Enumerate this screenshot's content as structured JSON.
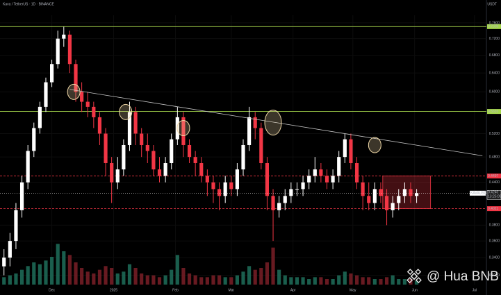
{
  "chart_data": {
    "type": "candlestick",
    "title": "Kava / TetherUS · 1D · BINANCE",
    "currency": "USDT",
    "watermark": "@ Hua BNB",
    "up_color": "#ffffff",
    "down_color": "#f23645",
    "log_y": true,
    "xlim": [
      -2,
      242
    ],
    "xticks": [
      {
        "value": 24,
        "label": "Dec"
      },
      {
        "value": 55,
        "label": "2025"
      },
      {
        "value": 86,
        "label": "Feb"
      },
      {
        "value": 114,
        "label": "Mar"
      },
      {
        "value": 145,
        "label": "Apr"
      },
      {
        "value": 175,
        "label": "May"
      },
      {
        "value": 206,
        "label": "Jun"
      },
      {
        "value": 236,
        "label": "Jul"
      }
    ],
    "ylim": [
      0.31,
      0.78
    ],
    "yticks": [
      {
        "value": 0.76,
        "label": "0.7600"
      },
      {
        "value": 0.72,
        "label": "0.7200"
      },
      {
        "value": 0.68,
        "label": "0.6800"
      },
      {
        "value": 0.64,
        "label": "0.6400"
      },
      {
        "value": 0.6,
        "label": "0.6000"
      },
      {
        "value": 0.52,
        "label": "0.5200"
      },
      {
        "value": 0.48,
        "label": "0.4800"
      },
      {
        "value": 0.44,
        "label": "0.4400"
      },
      {
        "value": 0.38,
        "label": "0.3800"
      },
      {
        "value": 0.36,
        "label": "0.3600"
      },
      {
        "value": 0.34,
        "label": "0.3400"
      },
      {
        "value": 0.32,
        "label": "0.3200"
      }
    ],
    "x": [
      0,
      3,
      6,
      9,
      12,
      15,
      18,
      21,
      24,
      27,
      30,
      33,
      36,
      39,
      42,
      45,
      48,
      51,
      54,
      57,
      60,
      63,
      66,
      69,
      72,
      75,
      78,
      81,
      84,
      87,
      90,
      93,
      96,
      99,
      102,
      105,
      108,
      111,
      114,
      117,
      120,
      123,
      126,
      129,
      132,
      135,
      138,
      141,
      144,
      147,
      150,
      153,
      156,
      159,
      162,
      165,
      168,
      171,
      174,
      177,
      180,
      183,
      186,
      189,
      192,
      195,
      198,
      201,
      204,
      207
    ],
    "open": [
      0.33,
      0.34,
      0.36,
      0.4,
      0.44,
      0.49,
      0.53,
      0.57,
      0.62,
      0.66,
      0.72,
      0.73,
      0.66,
      0.6,
      0.58,
      0.57,
      0.55,
      0.52,
      0.47,
      0.44,
      0.46,
      0.5,
      0.56,
      0.52,
      0.5,
      0.49,
      0.46,
      0.45,
      0.47,
      0.51,
      0.55,
      0.5,
      0.48,
      0.47,
      0.45,
      0.44,
      0.43,
      0.42,
      0.44,
      0.43,
      0.46,
      0.5,
      0.55,
      0.53,
      0.47,
      0.42,
      0.4,
      0.41,
      0.42,
      0.43,
      0.43,
      0.44,
      0.45,
      0.46,
      0.45,
      0.44,
      0.45,
      0.48,
      0.51,
      0.47,
      0.44,
      0.42,
      0.41,
      0.43,
      0.42,
      0.4,
      0.41,
      0.42,
      0.43,
      0.42
    ],
    "high": [
      0.35,
      0.37,
      0.41,
      0.45,
      0.5,
      0.54,
      0.58,
      0.63,
      0.67,
      0.74,
      0.75,
      0.74,
      0.67,
      0.62,
      0.6,
      0.58,
      0.56,
      0.53,
      0.48,
      0.48,
      0.51,
      0.58,
      0.57,
      0.53,
      0.52,
      0.5,
      0.48,
      0.48,
      0.52,
      0.57,
      0.56,
      0.51,
      0.49,
      0.48,
      0.46,
      0.45,
      0.44,
      0.45,
      0.45,
      0.47,
      0.51,
      0.57,
      0.56,
      0.54,
      0.48,
      0.43,
      0.42,
      0.43,
      0.44,
      0.44,
      0.45,
      0.46,
      0.48,
      0.47,
      0.46,
      0.46,
      0.49,
      0.52,
      0.52,
      0.48,
      0.45,
      0.44,
      0.44,
      0.44,
      0.43,
      0.42,
      0.43,
      0.44,
      0.44,
      0.43
    ],
    "low": [
      0.32,
      0.33,
      0.35,
      0.39,
      0.43,
      0.48,
      0.52,
      0.56,
      0.61,
      0.65,
      0.7,
      0.64,
      0.58,
      0.56,
      0.55,
      0.53,
      0.5,
      0.45,
      0.41,
      0.43,
      0.45,
      0.49,
      0.5,
      0.48,
      0.47,
      0.45,
      0.44,
      0.44,
      0.46,
      0.5,
      0.48,
      0.47,
      0.45,
      0.44,
      0.42,
      0.41,
      0.4,
      0.41,
      0.42,
      0.42,
      0.45,
      0.49,
      0.51,
      0.46,
      0.4,
      0.36,
      0.39,
      0.4,
      0.41,
      0.42,
      0.42,
      0.43,
      0.44,
      0.44,
      0.43,
      0.43,
      0.44,
      0.47,
      0.46,
      0.43,
      0.4,
      0.4,
      0.4,
      0.41,
      0.38,
      0.39,
      0.4,
      0.41,
      0.41,
      0.41
    ],
    "close": [
      0.34,
      0.36,
      0.4,
      0.44,
      0.49,
      0.53,
      0.57,
      0.62,
      0.66,
      0.72,
      0.73,
      0.66,
      0.6,
      0.58,
      0.57,
      0.55,
      0.52,
      0.47,
      0.44,
      0.46,
      0.5,
      0.56,
      0.52,
      0.5,
      0.49,
      0.46,
      0.45,
      0.47,
      0.51,
      0.55,
      0.5,
      0.48,
      0.47,
      0.45,
      0.44,
      0.43,
      0.42,
      0.44,
      0.43,
      0.46,
      0.5,
      0.55,
      0.53,
      0.47,
      0.42,
      0.4,
      0.41,
      0.42,
      0.43,
      0.43,
      0.44,
      0.45,
      0.46,
      0.45,
      0.44,
      0.45,
      0.48,
      0.51,
      0.47,
      0.44,
      0.42,
      0.41,
      0.43,
      0.42,
      0.4,
      0.41,
      0.42,
      0.43,
      0.42,
      0.424
    ],
    "vlim": [
      0,
      30
    ],
    "volume": [
      4,
      5,
      6,
      8,
      10,
      12,
      11,
      13,
      15,
      22,
      18,
      16,
      12,
      9,
      7,
      6,
      8,
      10,
      9,
      6,
      7,
      11,
      9,
      6,
      5,
      5,
      4,
      5,
      8,
      16,
      9,
      6,
      5,
      4,
      4,
      5,
      5,
      4,
      4,
      5,
      7,
      10,
      8,
      9,
      12,
      20,
      8,
      5,
      4,
      4,
      4,
      3,
      4,
      4,
      3,
      3,
      5,
      7,
      6,
      5,
      4,
      4,
      3,
      3,
      4,
      5,
      3,
      3,
      3,
      2
    ],
    "levels": [
      {
        "value": 0.7503,
        "label": "0.7503",
        "color": "#a5d64c",
        "dashed": false
      },
      {
        "value": 0.561,
        "label": "0.5610",
        "color": "#a5d64c",
        "dashed": false
      },
      {
        "value": 0.4497,
        "label": "0.4497",
        "color": "#f23645",
        "dashed": true
      },
      {
        "value": 0.4021,
        "label": "0.4021",
        "color": "#f23645",
        "dashed": true
      }
    ],
    "last_price": {
      "symbol": "KAVAUSDT",
      "value": 0.424,
      "label": "0.4240",
      "countdown": "13:25:09"
    },
    "trendline": {
      "x": [
        33,
        240
      ],
      "y": [
        0.605,
        0.482
      ],
      "color": "#c8c8c8"
    },
    "highlights": {
      "x": [
        35,
        61,
        90,
        135,
        186
      ],
      "y": [
        0.6,
        0.56,
        0.53,
        0.54,
        0.5
      ],
      "color": "#f0d9a8"
    },
    "range_box": {
      "x": [
        190,
        214
      ],
      "y": [
        0.4021,
        0.4497
      ],
      "color": "#f23645"
    }
  }
}
